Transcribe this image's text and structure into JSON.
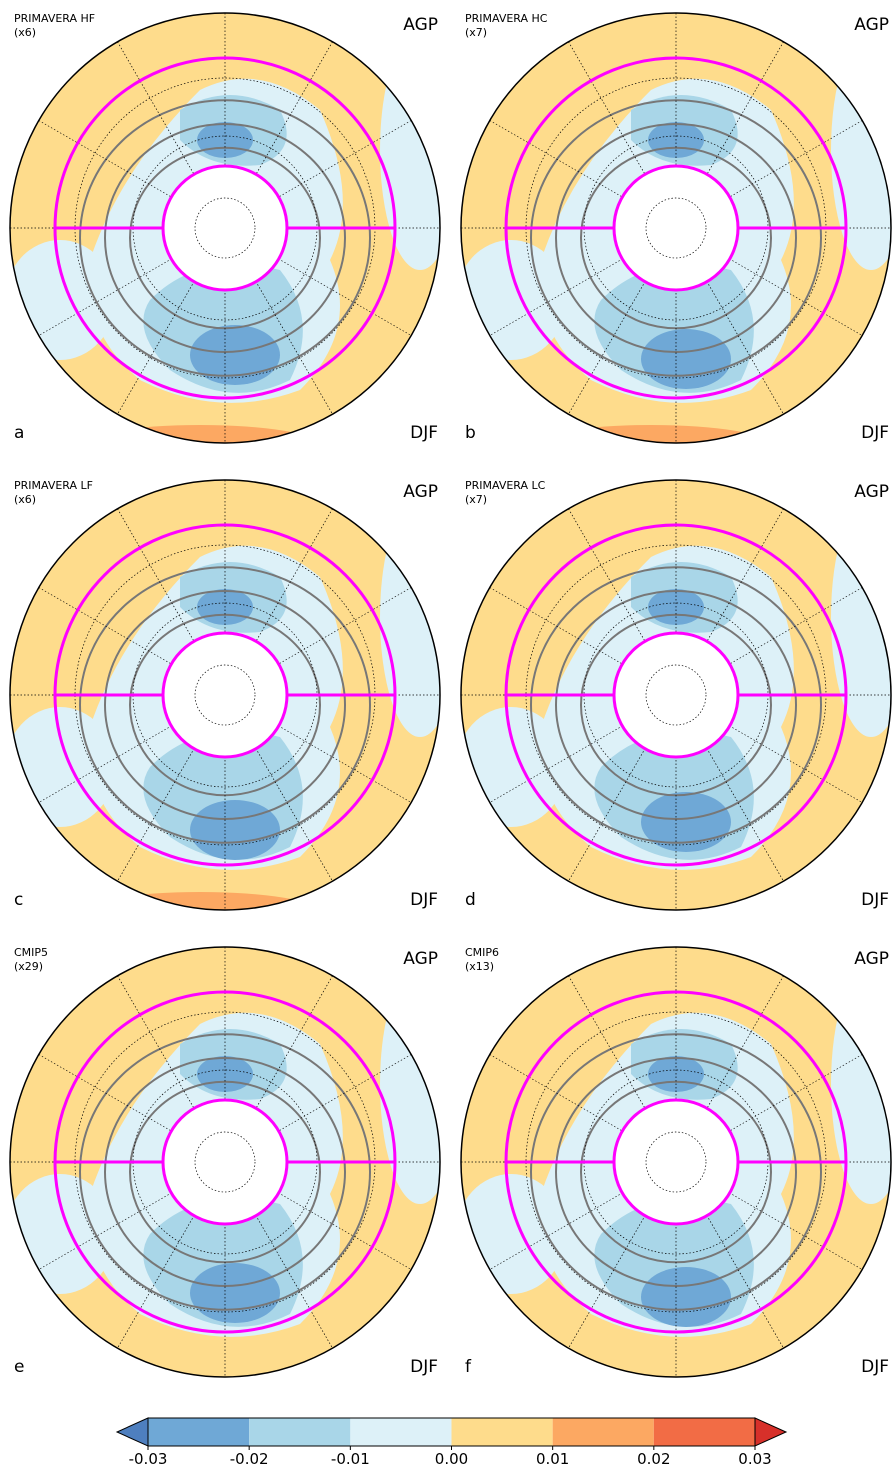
{
  "panels": [
    {
      "title": "PRIMAVERA HF",
      "members": "(x6)",
      "index": "AGP",
      "letter": "a",
      "season": "DJF"
    },
    {
      "title": "PRIMAVERA HC",
      "members": "(x7)",
      "index": "AGP",
      "letter": "b",
      "season": "DJF"
    },
    {
      "title": "PRIMAVERA LF",
      "members": "(x6)",
      "index": "AGP",
      "letter": "c",
      "season": "DJF"
    },
    {
      "title": "PRIMAVERA LC",
      "members": "(x7)",
      "index": "AGP",
      "letter": "d",
      "season": "DJF"
    },
    {
      "title": "CMIP5",
      "members": "(x29)",
      "index": "AGP",
      "letter": "e",
      "season": "DJF"
    },
    {
      "title": "CMIP6",
      "members": "(x13)",
      "index": "AGP",
      "letter": "f",
      "season": "DJF"
    }
  ],
  "colorbar": {
    "ticks": [
      {
        "value": -0.03,
        "label": "-0.03"
      },
      {
        "value": -0.02,
        "label": "-0.02"
      },
      {
        "value": -0.01,
        "label": "-0.01"
      },
      {
        "value": 0,
        "label": "0.00"
      },
      {
        "value": 0.01,
        "label": "0.01"
      },
      {
        "value": 0.02,
        "label": "0.02"
      },
      {
        "value": 0.03,
        "label": "0.03"
      }
    ],
    "colors": [
      "#6fa8d6",
      "#a9d6e8",
      "#ddf1f8",
      "#fedc8c",
      "#fca862",
      "#f26c45"
    ],
    "under": "#4e7fbf",
    "over": "#d7302a"
  }
}
